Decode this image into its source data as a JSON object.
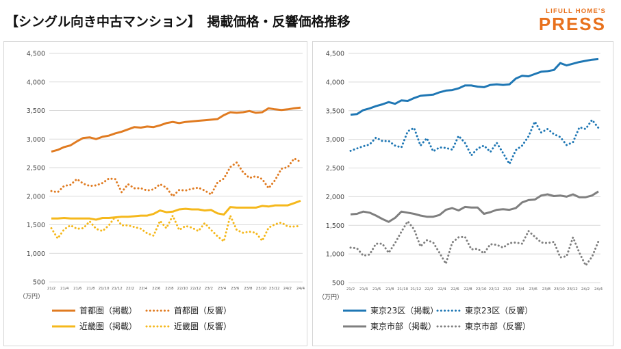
{
  "title": "【シングル向き中古マンション】　掲載価格・反響価格推移",
  "logo": {
    "line1": "LIFULL HOME'S",
    "line2": "PRESS"
  },
  "chart_data": [
    {
      "type": "line",
      "title": "",
      "ylabel": "（万円）",
      "ylim": [
        500,
        4500
      ],
      "yticks": [
        500,
        1000,
        1500,
        2000,
        2500,
        3000,
        3500,
        4000,
        4500
      ],
      "yticklabels": [
        "500",
        "1,000",
        "1,500",
        "2,000",
        "2,500",
        "3,000",
        "3,500",
        "4,000",
        "4,500"
      ],
      "xticklabels": [
        "21/2",
        "21/4",
        "21/6",
        "21/8",
        "21/10",
        "21/12",
        "22/2",
        "22/4",
        "22/6",
        "22/8",
        "22/10",
        "22/12",
        "23/2",
        "23/4",
        "23/6",
        "23/8",
        "23/10",
        "23/12",
        "24/2",
        "24/4"
      ],
      "series": [
        {
          "name": "首都圏（掲載）",
          "style": "solid",
          "color": "#e07b21",
          "values": [
            2780,
            2810,
            2860,
            2890,
            2960,
            3020,
            3030,
            3000,
            3040,
            3060,
            3100,
            3130,
            3170,
            3210,
            3200,
            3220,
            3210,
            3240,
            3280,
            3300,
            3280,
            3300,
            3310,
            3320,
            3330,
            3340,
            3350,
            3420,
            3470,
            3460,
            3470,
            3490,
            3460,
            3470,
            3540,
            3520,
            3510,
            3520,
            3540,
            3550
          ]
        },
        {
          "name": "首都圏（反響）",
          "style": "dotted",
          "color": "#e07b21",
          "values": [
            2090,
            2070,
            2180,
            2200,
            2300,
            2220,
            2180,
            2190,
            2230,
            2310,
            2300,
            2070,
            2210,
            2140,
            2140,
            2100,
            2120,
            2210,
            2150,
            2000,
            2110,
            2100,
            2130,
            2150,
            2100,
            2030,
            2240,
            2310,
            2510,
            2590,
            2420,
            2320,
            2350,
            2300,
            2140,
            2280,
            2480,
            2510,
            2660,
            2600
          ]
        },
        {
          "name": "近畿圏（掲載）",
          "style": "solid",
          "color": "#f5b81c",
          "values": [
            1610,
            1610,
            1620,
            1610,
            1610,
            1610,
            1610,
            1590,
            1620,
            1620,
            1630,
            1640,
            1640,
            1650,
            1660,
            1660,
            1690,
            1750,
            1720,
            1730,
            1770,
            1780,
            1770,
            1770,
            1750,
            1760,
            1700,
            1680,
            1810,
            1800,
            1800,
            1800,
            1800,
            1830,
            1820,
            1840,
            1840,
            1840,
            1880,
            1920
          ]
        },
        {
          "name": "近畿圏（反響）",
          "style": "dotted",
          "color": "#f5b81c",
          "values": [
            1440,
            1260,
            1420,
            1490,
            1430,
            1440,
            1560,
            1430,
            1390,
            1490,
            1640,
            1490,
            1490,
            1460,
            1430,
            1350,
            1310,
            1570,
            1440,
            1660,
            1410,
            1480,
            1450,
            1390,
            1530,
            1410,
            1300,
            1210,
            1660,
            1410,
            1360,
            1380,
            1360,
            1220,
            1450,
            1510,
            1540,
            1470,
            1470,
            1480
          ]
        }
      ],
      "legend": [
        "首都圏（掲載）",
        "首都圏（反響）",
        "近畿圏（掲載）",
        "近畿圏（反響）"
      ],
      "legend_position": "bottom"
    },
    {
      "type": "line",
      "title": "",
      "ylabel": "（万円）",
      "ylim": [
        500,
        4500
      ],
      "yticks": [
        500,
        1000,
        1500,
        2000,
        2500,
        3000,
        3500,
        4000,
        4500
      ],
      "yticklabels": [
        "500",
        "1,000",
        "1,500",
        "2,000",
        "2,500",
        "3,000",
        "3,500",
        "4,000",
        "4,500"
      ],
      "xticklabels": [
        "21/2",
        "21/4",
        "21/6",
        "21/8",
        "21/10",
        "21/12",
        "22/2",
        "22/4",
        "22/6",
        "22/8",
        "22/10",
        "22/12",
        "23/2",
        "23/4",
        "23/6",
        "23/8",
        "23/10",
        "23/12",
        "24/2",
        "24/4"
      ],
      "series": [
        {
          "name": "東京23区（掲載）",
          "style": "solid",
          "color": "#1f77b4",
          "values": [
            3430,
            3440,
            3510,
            3540,
            3580,
            3610,
            3650,
            3620,
            3680,
            3670,
            3720,
            3760,
            3770,
            3780,
            3820,
            3850,
            3860,
            3890,
            3940,
            3940,
            3920,
            3910,
            3950,
            3960,
            3950,
            3960,
            4060,
            4110,
            4100,
            4140,
            4180,
            4190,
            4210,
            4330,
            4290,
            4320,
            4350,
            4370,
            4390,
            4400
          ]
        },
        {
          "name": "東京23区（反響）",
          "style": "dotted",
          "color": "#1f77b4",
          "values": [
            2800,
            2840,
            2880,
            2910,
            3030,
            2970,
            2970,
            2890,
            2860,
            3140,
            3200,
            2890,
            3020,
            2790,
            2860,
            2850,
            2820,
            3060,
            2940,
            2720,
            2840,
            2890,
            2780,
            2940,
            2760,
            2570,
            2810,
            2890,
            3050,
            3310,
            3120,
            3180,
            3090,
            3040,
            2900,
            2950,
            3210,
            3180,
            3340,
            3200
          ]
        },
        {
          "name": "東京市部（掲載）",
          "style": "solid",
          "color": "#7f7f7f",
          "values": [
            1690,
            1700,
            1740,
            1720,
            1670,
            1610,
            1560,
            1630,
            1740,
            1720,
            1700,
            1670,
            1650,
            1650,
            1680,
            1770,
            1800,
            1760,
            1820,
            1810,
            1810,
            1700,
            1730,
            1770,
            1780,
            1770,
            1800,
            1900,
            1940,
            1950,
            2020,
            2040,
            2010,
            2020,
            2000,
            2040,
            1990,
            1990,
            2020,
            2090
          ]
        },
        {
          "name": "東京市部（反響）",
          "style": "dotted",
          "color": "#7f7f7f",
          "values": [
            1110,
            1100,
            970,
            990,
            1180,
            1180,
            1020,
            1190,
            1390,
            1570,
            1430,
            1130,
            1240,
            1200,
            1020,
            830,
            1200,
            1290,
            1300,
            1080,
            1090,
            1010,
            1170,
            1160,
            1110,
            1190,
            1200,
            1180,
            1400,
            1300,
            1200,
            1190,
            1210,
            940,
            960,
            1290,
            1020,
            800,
            950,
            1220
          ]
        }
      ],
      "legend": [
        "東京23区（掲載）",
        "東京23区（反響）",
        "東京市部（掲載）",
        "東京市部（反響）"
      ],
      "legend_position": "bottom"
    }
  ]
}
